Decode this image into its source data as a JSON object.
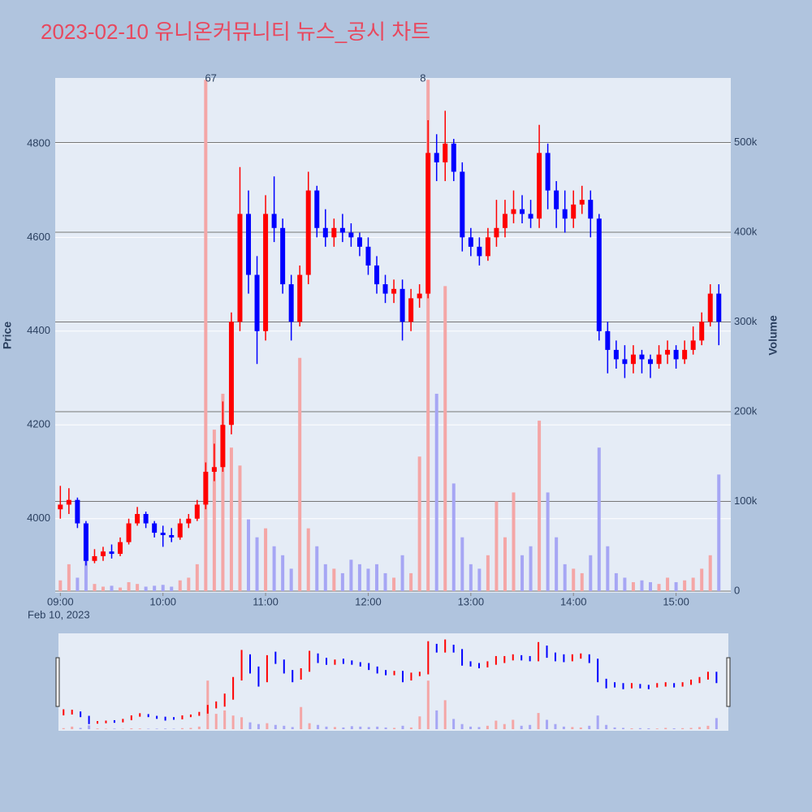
{
  "chart_data": {
    "type": "candlestick",
    "title": "2023-02-10 유니온커뮤니티 뉴스_공시 차트",
    "y_label": "Price",
    "y2_label": "Volume",
    "x_date_label": "Feb 10, 2023",
    "increasing_color": "#ff0000",
    "decreasing_color": "#0000ff",
    "volume_increasing_color": "#f4a6a6",
    "volume_decreasing_color": "#a6a6f4",
    "x": [
      "09:00",
      "09:05",
      "09:10",
      "09:15",
      "09:20",
      "09:25",
      "09:30",
      "09:35",
      "09:40",
      "09:45",
      "09:50",
      "09:55",
      "10:00",
      "10:05",
      "10:10",
      "10:15",
      "10:20",
      "10:25",
      "10:30",
      "10:35",
      "10:40",
      "10:45",
      "10:50",
      "10:55",
      "11:00",
      "11:05",
      "11:10",
      "11:15",
      "11:20",
      "11:25",
      "11:30",
      "11:35",
      "11:40",
      "11:45",
      "11:50",
      "11:55",
      "12:00",
      "12:05",
      "12:10",
      "12:15",
      "12:20",
      "12:25",
      "12:30",
      "12:35",
      "12:40",
      "12:45",
      "12:50",
      "12:55",
      "13:00",
      "13:05",
      "13:10",
      "13:15",
      "13:20",
      "13:25",
      "13:30",
      "13:35",
      "13:40",
      "13:45",
      "13:50",
      "13:55",
      "14:00",
      "14:05",
      "14:10",
      "14:15",
      "14:20",
      "14:25",
      "14:30",
      "14:35",
      "14:40",
      "14:45",
      "14:50",
      "14:55",
      "15:00",
      "15:05",
      "15:10",
      "15:15",
      "15:20",
      "15:25"
    ],
    "open": [
      4020,
      4030,
      4040,
      3990,
      3910,
      3920,
      3930,
      3925,
      3950,
      3990,
      4010,
      3990,
      3970,
      3965,
      3960,
      3990,
      4000,
      4030,
      4100,
      4110,
      4200,
      4420,
      4650,
      4520,
      4400,
      4650,
      4620,
      4500,
      4420,
      4520,
      4700,
      4620,
      4600,
      4620,
      4610,
      4600,
      4580,
      4540,
      4500,
      4480,
      4490,
      4420,
      4470,
      4480,
      4780,
      4760,
      4800,
      4740,
      4600,
      4580,
      4560,
      4600,
      4620,
      4650,
      4660,
      4650,
      4640,
      4780,
      4700,
      4660,
      4640,
      4670,
      4680,
      4640,
      4400,
      4360,
      4340,
      4330,
      4350,
      4340,
      4330,
      4350,
      4360,
      4340,
      4360,
      4380,
      4420,
      4480
    ],
    "high": [
      4070,
      4065,
      4045,
      3995,
      3935,
      3940,
      3945,
      3960,
      4000,
      4025,
      4015,
      3995,
      3985,
      3980,
      4000,
      4010,
      4040,
      4120,
      4160,
      4250,
      4440,
      4750,
      4700,
      4560,
      4690,
      4730,
      4640,
      4520,
      4540,
      4740,
      4710,
      4660,
      4640,
      4650,
      4630,
      4610,
      4600,
      4560,
      4520,
      4510,
      4510,
      4490,
      4500,
      4850,
      4820,
      4870,
      4810,
      4760,
      4620,
      4600,
      4620,
      4680,
      4680,
      4700,
      4690,
      4680,
      4840,
      4800,
      4720,
      4700,
      4700,
      4710,
      4700,
      4650,
      4420,
      4380,
      4370,
      4370,
      4360,
      4350,
      4370,
      4380,
      4370,
      4380,
      4410,
      4440,
      4500,
      4500
    ],
    "low": [
      4000,
      4010,
      3980,
      3900,
      3905,
      3910,
      3915,
      3920,
      3945,
      3985,
      3980,
      3960,
      3940,
      3950,
      3955,
      3980,
      3995,
      4020,
      4080,
      4100,
      4180,
      4400,
      4480,
      4330,
      4380,
      4590,
      4480,
      4380,
      4410,
      4500,
      4600,
      4580,
      4580,
      4590,
      4580,
      4560,
      4520,
      4480,
      4460,
      4460,
      4380,
      4400,
      4450,
      4470,
      4720,
      4720,
      4720,
      4570,
      4560,
      4540,
      4550,
      4580,
      4600,
      4630,
      4630,
      4620,
      4620,
      4660,
      4620,
      4610,
      4620,
      4650,
      4600,
      4380,
      4310,
      4320,
      4300,
      4310,
      4310,
      4300,
      4320,
      4330,
      4320,
      4330,
      4350,
      4370,
      4410,
      4370
    ],
    "close": [
      4030,
      4040,
      3990,
      3910,
      3920,
      3930,
      3925,
      3950,
      3990,
      4010,
      3990,
      3970,
      3965,
      3960,
      3990,
      4000,
      4030,
      4100,
      4110,
      4200,
      4420,
      4650,
      4520,
      4400,
      4650,
      4620,
      4500,
      4420,
      4520,
      4700,
      4620,
      4600,
      4620,
      4610,
      4600,
      4580,
      4540,
      4500,
      4480,
      4490,
      4420,
      4470,
      4480,
      4780,
      4760,
      4800,
      4740,
      4600,
      4580,
      4560,
      4600,
      4620,
      4650,
      4660,
      4650,
      4640,
      4780,
      4700,
      4660,
      4640,
      4670,
      4680,
      4640,
      4400,
      4360,
      4340,
      4330,
      4350,
      4340,
      4330,
      4350,
      4360,
      4340,
      4360,
      4380,
      4420,
      4480,
      4420
    ],
    "volume": [
      12000,
      30000,
      15000,
      45000,
      8000,
      5000,
      6000,
      4000,
      10000,
      8000,
      5000,
      6000,
      7000,
      5000,
      12000,
      15000,
      30000,
      570000,
      180000,
      220000,
      160000,
      140000,
      80000,
      60000,
      70000,
      50000,
      40000,
      25000,
      260000,
      70000,
      50000,
      30000,
      25000,
      20000,
      35000,
      30000,
      25000,
      30000,
      20000,
      15000,
      40000,
      20000,
      150000,
      570000,
      220000,
      340000,
      120000,
      60000,
      30000,
      25000,
      40000,
      100000,
      60000,
      110000,
      40000,
      50000,
      190000,
      110000,
      60000,
      30000,
      25000,
      20000,
      40000,
      160000,
      50000,
      20000,
      15000,
      10000,
      12000,
      10000,
      8000,
      15000,
      10000,
      12000,
      15000,
      25000,
      40000,
      130000
    ],
    "xlim": [
      "08:57",
      "15:32"
    ],
    "xticks": [
      "09:00",
      "10:00",
      "11:00",
      "12:00",
      "13:00",
      "14:00",
      "15:00"
    ],
    "ylim": [
      3842,
      4940
    ],
    "yticks": [
      4000,
      4200,
      4400,
      4600,
      4800
    ],
    "y2lim": [
      0,
      572000
    ],
    "y2ticks": [
      0,
      {
        "value": 100000,
        "label": "100k"
      },
      {
        "value": 200000,
        "label": "200k"
      },
      {
        "value": 300000,
        "label": "300k"
      },
      {
        "value": 400000,
        "label": "400k"
      },
      {
        "value": 500000,
        "label": "500k"
      }
    ],
    "annotations": [
      {
        "x": "10:28",
        "text": "67"
      },
      {
        "x": "12:32",
        "text": "8"
      }
    ],
    "range_slider": true
  }
}
